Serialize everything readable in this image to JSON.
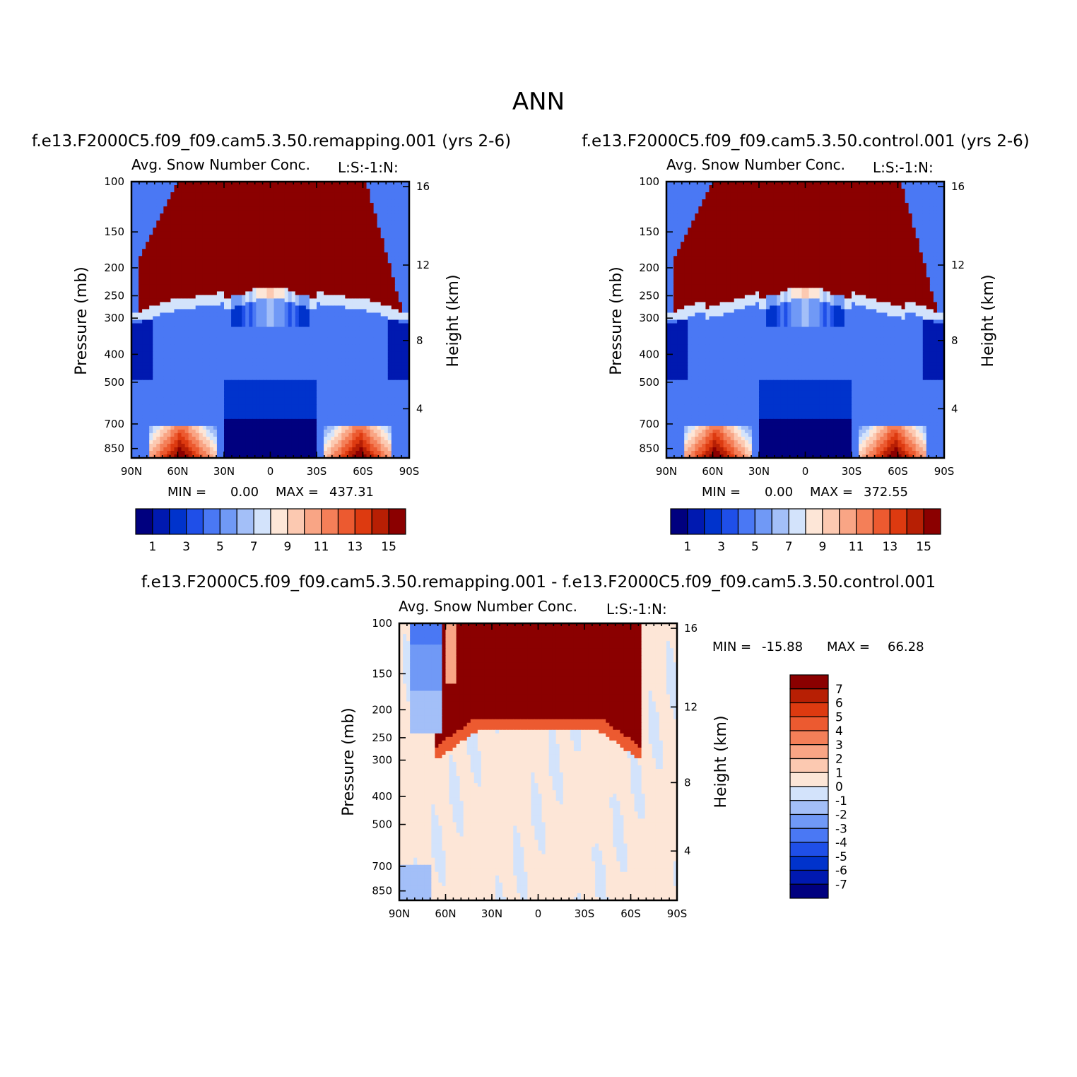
{
  "figure": {
    "title": "ANN"
  },
  "colors": {
    "abs": [
      "#00007f",
      "#0019b0",
      "#0033cc",
      "#1f4fe8",
      "#4a78f4",
      "#7099f6",
      "#a3bff8",
      "#d3e3fb",
      "#fde6d7",
      "#fcc9b1",
      "#f9a585",
      "#f47f58",
      "#ec5a30",
      "#dd3a10",
      "#b71f04",
      "#8b0000"
    ],
    "diff": [
      "#00007f",
      "#0019b0",
      "#0033cc",
      "#1f4fe8",
      "#4a78f4",
      "#7099f6",
      "#a3bff8",
      "#d3e3fb",
      "#fde6d7",
      "#fcc9b1",
      "#f9a585",
      "#f47f58",
      "#ec5a30",
      "#dd3a10",
      "#b71f04",
      "#8b0000"
    ]
  },
  "chart_data": [
    {
      "type": "heatmap",
      "case_title": "f.e13.F2000C5.f09_f09.cam5.3.50.remapping.001 (yrs 2-6)",
      "panel_title": "Avg. Snow Number Conc.",
      "panel_code": "L:S:-1:N:",
      "ylabel": "Pressure (mb)",
      "ylabel2": "Height (km)",
      "xticks": [
        "90N",
        "60N",
        "30N",
        "0",
        "30S",
        "60S",
        "90S"
      ],
      "yticks": [
        "100",
        "150",
        "200",
        "250",
        "300",
        "400",
        "500",
        "700",
        "850"
      ],
      "yticks2": [
        "16",
        "12",
        "8",
        "4"
      ],
      "min_label": "MIN =",
      "min_value": "0.00",
      "max_label": "MAX =",
      "max_value": "437.31",
      "colorbar_labels": [
        "1",
        "3",
        "5",
        "7",
        "9",
        "11",
        "13",
        "15"
      ]
    },
    {
      "type": "heatmap",
      "case_title": "f.e13.F2000C5.f09_f09.cam5.3.50.control.001 (yrs 2-6)",
      "panel_title": "Avg. Snow Number Conc.",
      "panel_code": "L:S:-1:N:",
      "ylabel": "Pressure (mb)",
      "ylabel2": "Height (km)",
      "xticks": [
        "90N",
        "60N",
        "30N",
        "0",
        "30S",
        "60S",
        "90S"
      ],
      "yticks": [
        "100",
        "150",
        "200",
        "250",
        "300",
        "400",
        "500",
        "700",
        "850"
      ],
      "yticks2": [
        "16",
        "12",
        "8",
        "4"
      ],
      "min_label": "MIN =",
      "min_value": "0.00",
      "max_label": "MAX =",
      "max_value": "372.55",
      "colorbar_labels": [
        "1",
        "3",
        "5",
        "7",
        "9",
        "11",
        "13",
        "15"
      ]
    },
    {
      "type": "heatmap",
      "case_title": "f.e13.F2000C5.f09_f09.cam5.3.50.remapping.001 - f.e13.F2000C5.f09_f09.cam5.3.50.control.001",
      "panel_title": "Avg. Snow Number Conc.",
      "panel_code": "L:S:-1:N:",
      "ylabel": "Pressure (mb)",
      "ylabel2": "Height (km)",
      "xticks": [
        "90N",
        "60N",
        "30N",
        "0",
        "30S",
        "60S",
        "90S"
      ],
      "yticks": [
        "100",
        "150",
        "200",
        "250",
        "300",
        "400",
        "500",
        "700",
        "850"
      ],
      "yticks2": [
        "16",
        "12",
        "8",
        "4"
      ],
      "min_label": "MIN =",
      "min_value": "-15.88",
      "max_label": "MAX =",
      "max_value": "66.28",
      "colorbar_labels": [
        "7",
        "6",
        "5",
        "4",
        "3",
        "2",
        "1",
        "0",
        "-1",
        "-2",
        "-3",
        "-4",
        "-5",
        "-6",
        "-7"
      ]
    }
  ]
}
